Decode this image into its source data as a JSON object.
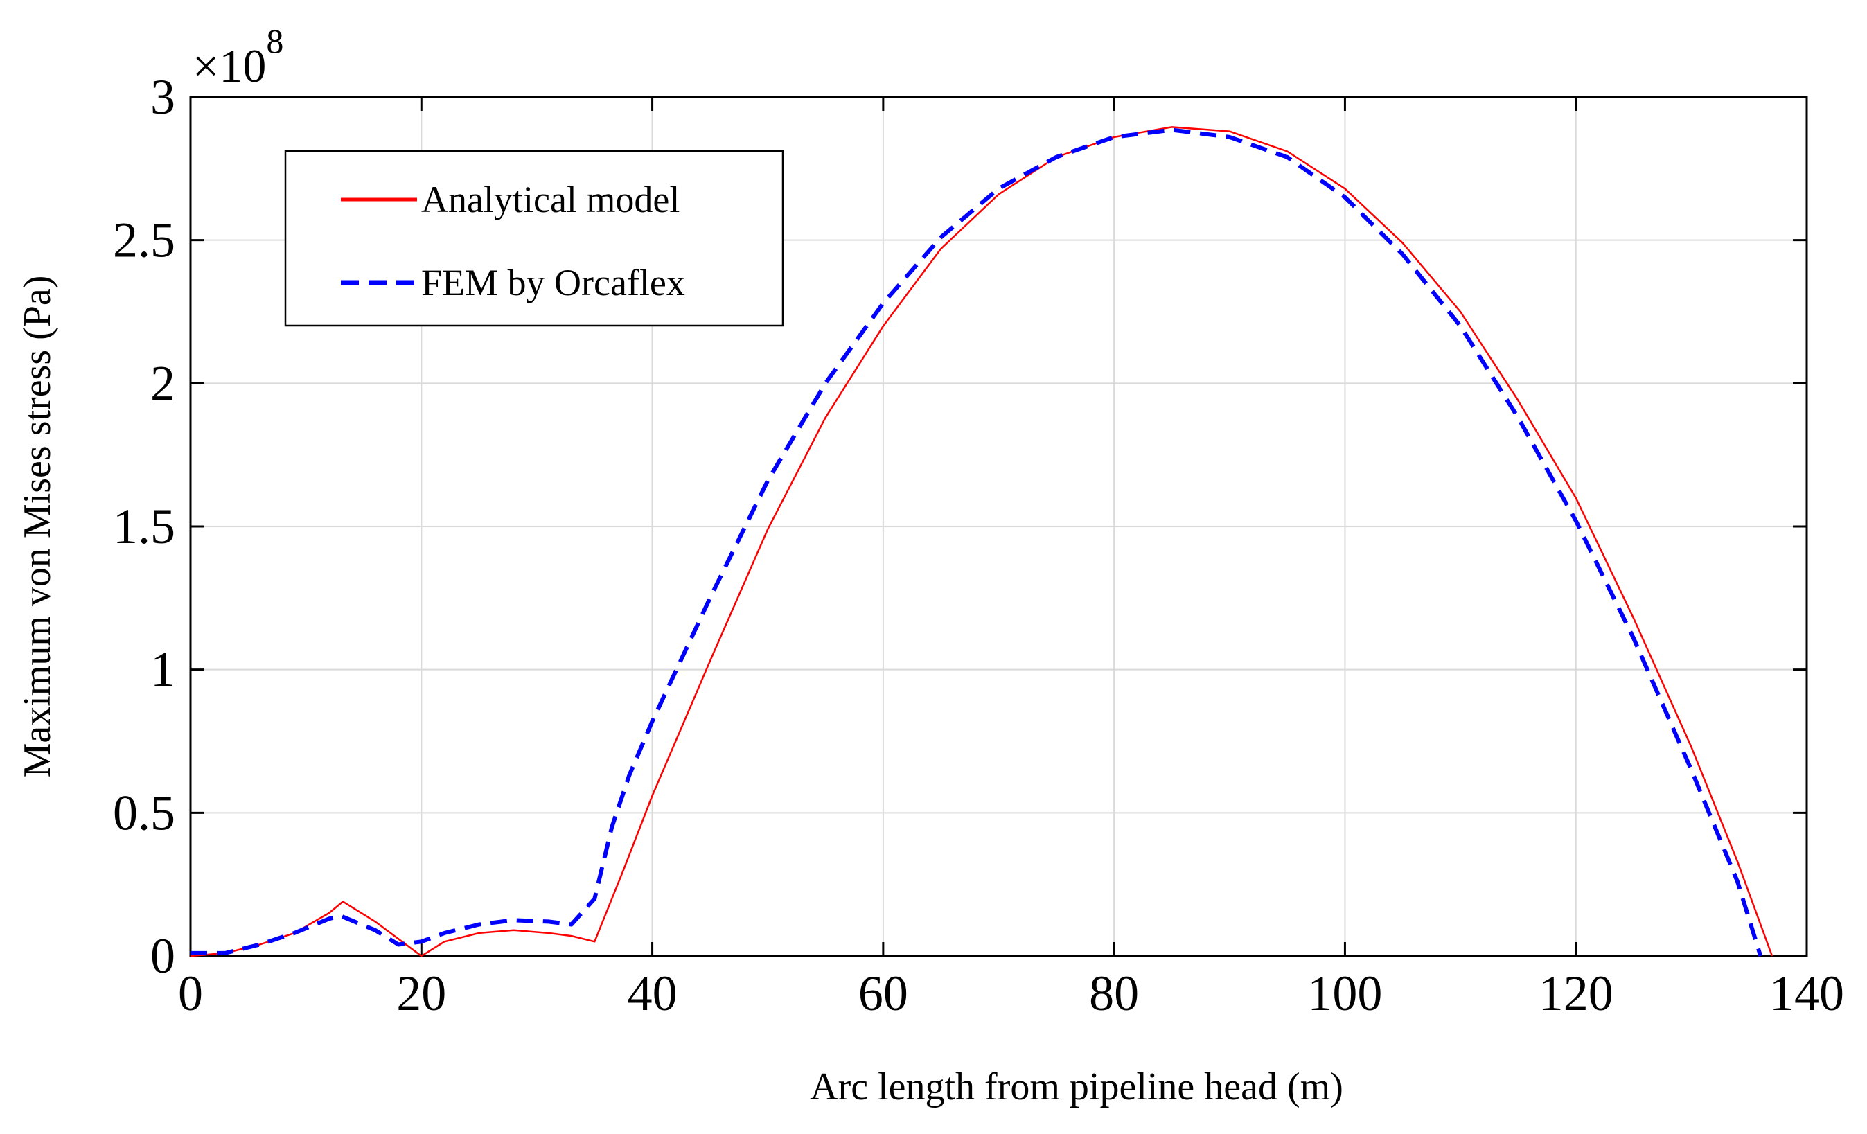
{
  "chart_data": {
    "type": "line",
    "title": "",
    "xlabel": "Arc length from pipeline head (m)",
    "ylabel": "Maximum von Mises stress (Pa)",
    "y_exponent_times": "×10",
    "y_exponent_power": "8",
    "xlim": [
      0,
      140
    ],
    "ylim": [
      0,
      3
    ],
    "xticks": [
      0,
      20,
      40,
      60,
      80,
      100,
      120,
      140
    ],
    "xtick_labels": [
      "0",
      "20",
      "40",
      "60",
      "80",
      "100",
      "120",
      "140"
    ],
    "yticks": [
      0,
      0.5,
      1,
      1.5,
      2,
      2.5,
      3
    ],
    "ytick_labels": [
      "0",
      "0.5",
      "1",
      "1.5",
      "2",
      "2.5",
      "3"
    ],
    "grid": true,
    "legend_position": "top-left",
    "series": [
      {
        "name": "Analytical model",
        "color": "#ff0000",
        "style": "solid",
        "x": [
          0,
          3,
          6,
          9,
          12,
          13.2,
          16,
          18,
          20,
          22,
          25,
          28,
          31,
          33,
          35,
          37.5,
          40,
          45,
          50,
          55,
          60,
          65,
          70,
          75,
          80,
          85,
          90,
          95,
          100,
          105,
          110,
          115,
          120,
          125,
          130,
          134,
          137
        ],
        "values": [
          0.0,
          0.01,
          0.04,
          0.08,
          0.15,
          0.19,
          0.12,
          0.06,
          0.0,
          0.05,
          0.08,
          0.09,
          0.08,
          0.07,
          0.05,
          0.3,
          0.56,
          1.03,
          1.49,
          1.88,
          2.2,
          2.47,
          2.66,
          2.79,
          2.86,
          2.895,
          2.88,
          2.81,
          2.68,
          2.49,
          2.25,
          1.94,
          1.6,
          1.18,
          0.73,
          0.33,
          0.0
        ]
      },
      {
        "name": "FEM by Orcaflex",
        "color": "#0000ff",
        "style": "dashed",
        "x": [
          0,
          3,
          6,
          9,
          12,
          13,
          16,
          18,
          20,
          22,
          25,
          28,
          31,
          33,
          35,
          36.5,
          38,
          40,
          45,
          50,
          55,
          60,
          65,
          70,
          75,
          80,
          85,
          90,
          95,
          100,
          105,
          110,
          115,
          120,
          125,
          130,
          134,
          136
        ],
        "values": [
          0.01,
          0.01,
          0.04,
          0.08,
          0.13,
          0.14,
          0.09,
          0.04,
          0.05,
          0.08,
          0.11,
          0.125,
          0.12,
          0.11,
          0.2,
          0.45,
          0.63,
          0.82,
          1.25,
          1.66,
          2.0,
          2.28,
          2.51,
          2.68,
          2.79,
          2.86,
          2.885,
          2.86,
          2.79,
          2.65,
          2.45,
          2.2,
          1.88,
          1.52,
          1.11,
          0.65,
          0.26,
          0.0
        ]
      }
    ]
  }
}
